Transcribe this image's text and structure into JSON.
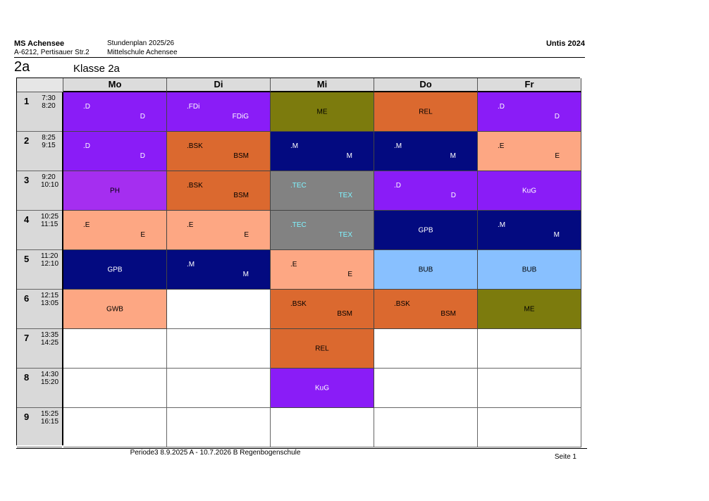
{
  "header": {
    "school_name": "MS Achensee",
    "address": "A-6212, Pertisauer Str.2",
    "plan_title": "Stundenplan 2025/26",
    "school_full": "Mittelschule Achensee",
    "software": "Untis 2024"
  },
  "class_info": {
    "short": "2a",
    "long": "Klasse 2a"
  },
  "days": [
    "Mo",
    "Di",
    "Mi",
    "Do",
    "Fr"
  ],
  "periods": [
    {
      "num": "1",
      "start": "7:30",
      "end": "8:20"
    },
    {
      "num": "2",
      "start": "8:25",
      "end": "9:15"
    },
    {
      "num": "3",
      "start": "9:20",
      "end": "10:10"
    },
    {
      "num": "4",
      "start": "10:25",
      "end": "11:15"
    },
    {
      "num": "5",
      "start": "11:20",
      "end": "12:10"
    },
    {
      "num": "6",
      "start": "12:15",
      "end": "13:05"
    },
    {
      "num": "7",
      "start": "13:35",
      "end": "14:25"
    },
    {
      "num": "8",
      "start": "14:30",
      "end": "15:20"
    },
    {
      "num": "9",
      "start": "15:25",
      "end": "16:15"
    }
  ],
  "lessons": [
    {
      "day": 0,
      "period": 0,
      "a": ".D",
      "b": "D",
      "bg": "#8a1cf7",
      "fg": "#ffffff"
    },
    {
      "day": 0,
      "period": 1,
      "a": ".D",
      "b": "D",
      "bg": "#8a1cf7",
      "fg": "#ffffff"
    },
    {
      "day": 0,
      "period": 2,
      "c": "PH",
      "bg": "#a52ef0",
      "fg": "#000000"
    },
    {
      "day": 0,
      "period": 3,
      "a": ".E",
      "b": "E",
      "bg": "#fda783",
      "fg": "#000000"
    },
    {
      "day": 0,
      "period": 4,
      "c": "GPB",
      "bg": "#030a80",
      "fg": "#ffffff"
    },
    {
      "day": 0,
      "period": 5,
      "c": "GWB",
      "bg": "#fda783",
      "fg": "#000000"
    },
    {
      "day": 1,
      "period": 0,
      "a": ".FDi",
      "b": "FDiG",
      "bg": "#8a1cf7",
      "fg": "#ffffff"
    },
    {
      "day": 1,
      "period": 1,
      "a": ".BSK",
      "b": "BSM",
      "bg": "#db692f",
      "fg": "#000000"
    },
    {
      "day": 1,
      "period": 2,
      "a": ".BSK",
      "b": "BSM",
      "bg": "#db692f",
      "fg": "#000000"
    },
    {
      "day": 1,
      "period": 3,
      "a": ".E",
      "b": "E",
      "bg": "#fda783",
      "fg": "#000000"
    },
    {
      "day": 1,
      "period": 4,
      "a": ".M",
      "b": "M",
      "bg": "#030a80",
      "fg": "#ffffff"
    },
    {
      "day": 2,
      "period": 0,
      "c": "ME",
      "bg": "#7c7b0d",
      "fg": "#000000"
    },
    {
      "day": 2,
      "period": 1,
      "a": ".M",
      "b": "M",
      "bg": "#030a80",
      "fg": "#ffffff"
    },
    {
      "day": 2,
      "period": 2,
      "a": ".TEC",
      "b": "TEX",
      "bg": "#828282",
      "fg": "#7ff4ff"
    },
    {
      "day": 2,
      "period": 3,
      "a": ".TEC",
      "b": "TEX",
      "bg": "#828282",
      "fg": "#7ff4ff"
    },
    {
      "day": 2,
      "period": 4,
      "a": ".E",
      "b": "E",
      "bg": "#fda783",
      "fg": "#000000"
    },
    {
      "day": 2,
      "period": 5,
      "a": ".BSK",
      "b": "BSM",
      "bg": "#db692f",
      "fg": "#000000"
    },
    {
      "day": 2,
      "period": 6,
      "c": "REL",
      "bg": "#db692f",
      "fg": "#000000"
    },
    {
      "day": 2,
      "period": 7,
      "c": "KuG",
      "bg": "#8a1cf7",
      "fg": "#ffffff"
    },
    {
      "day": 3,
      "period": 0,
      "c": "REL",
      "bg": "#db692f",
      "fg": "#000000"
    },
    {
      "day": 3,
      "period": 1,
      "a": ".M",
      "b": "M",
      "bg": "#030a80",
      "fg": "#ffffff"
    },
    {
      "day": 3,
      "period": 2,
      "a": ".D",
      "b": "D",
      "bg": "#8a1cf7",
      "fg": "#ffffff"
    },
    {
      "day": 3,
      "period": 3,
      "c": "GPB",
      "bg": "#030a80",
      "fg": "#ffffff"
    },
    {
      "day": 3,
      "period": 4,
      "c": "BUB",
      "bg": "#88c0ff",
      "fg": "#000000"
    },
    {
      "day": 3,
      "period": 5,
      "a": ".BSK",
      "b": "BSM",
      "bg": "#db692f",
      "fg": "#000000"
    },
    {
      "day": 4,
      "period": 0,
      "a": ".D",
      "b": "D",
      "bg": "#8a1cf7",
      "fg": "#ffffff"
    },
    {
      "day": 4,
      "period": 1,
      "a": ".E",
      "b": "E",
      "bg": "#fda783",
      "fg": "#000000"
    },
    {
      "day": 4,
      "period": 2,
      "c": "KuG",
      "bg": "#8a1cf7",
      "fg": "#ffffff"
    },
    {
      "day": 4,
      "period": 3,
      "a": ".M",
      "b": "M",
      "bg": "#030a80",
      "fg": "#ffffff"
    },
    {
      "day": 4,
      "period": 4,
      "c": "BUB",
      "bg": "#88c0ff",
      "fg": "#000000"
    },
    {
      "day": 4,
      "period": 5,
      "c": "ME",
      "bg": "#7c7b0d",
      "fg": "#000000"
    }
  ],
  "footer": {
    "info": "Periode3   8.9.2025 A - 10.7.2026 B   Regenbogenschule",
    "page": "Seite 1"
  }
}
